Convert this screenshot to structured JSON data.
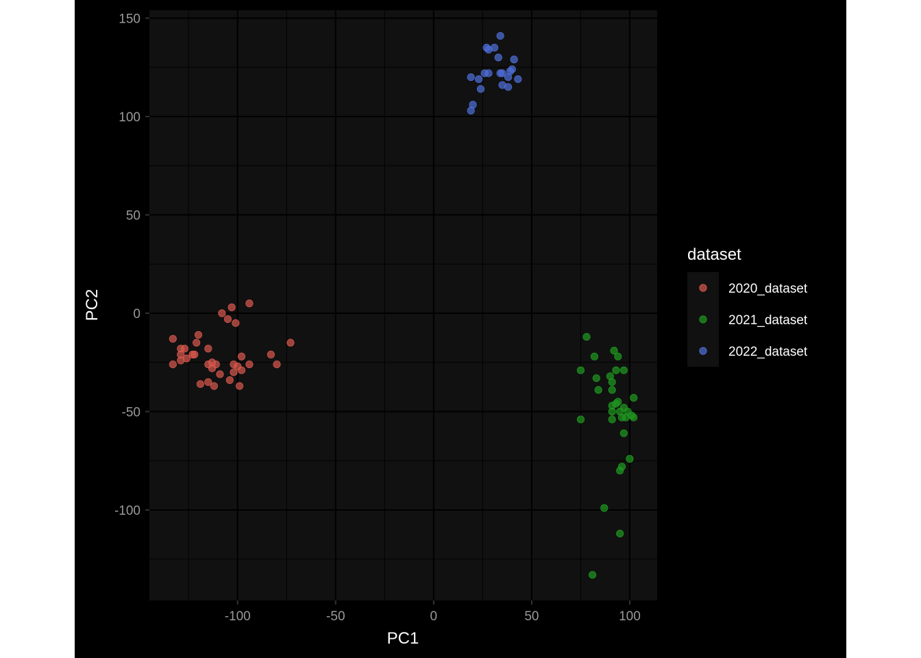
{
  "chart_data": {
    "type": "scatter",
    "title": "",
    "xlabel": "PC1",
    "ylabel": "PC2",
    "xlim": [
      -145,
      114
    ],
    "ylim": [
      -146,
      154
    ],
    "xticks": [
      -100,
      -50,
      0,
      50,
      100
    ],
    "xtick_labels": [
      "-100",
      "-50",
      "0",
      "50",
      "100"
    ],
    "yticks": [
      -100,
      -50,
      0,
      50,
      100,
      150
    ],
    "ytick_labels": [
      "-100",
      "-50",
      "0",
      "50",
      "100",
      "150"
    ],
    "grid": true,
    "background": "#111111",
    "legend": {
      "title": "dataset",
      "placement": "right"
    },
    "series": [
      {
        "name": "2020_dataset",
        "color": "#d9594e",
        "points": [
          [
            -94,
            5
          ],
          [
            -103,
            3
          ],
          [
            -108,
            0
          ],
          [
            -105,
            -3
          ],
          [
            -101,
            -5
          ],
          [
            -133,
            -13
          ],
          [
            -120,
            -11
          ],
          [
            -121,
            -15
          ],
          [
            -129,
            -18
          ],
          [
            -127,
            -18
          ],
          [
            -115,
            -18
          ],
          [
            -123,
            -21
          ],
          [
            -122,
            -21
          ],
          [
            -129,
            -21
          ],
          [
            -126,
            -23
          ],
          [
            -129,
            -24
          ],
          [
            -113,
            -25
          ],
          [
            -111,
            -26
          ],
          [
            -115,
            -26
          ],
          [
            -102,
            -26
          ],
          [
            -94,
            -26
          ],
          [
            -100,
            -27
          ],
          [
            -80,
            -26
          ],
          [
            -133,
            -26
          ],
          [
            -98,
            -22
          ],
          [
            -83,
            -21
          ],
          [
            -73,
            -15
          ],
          [
            -113,
            -28
          ],
          [
            -98,
            -29
          ],
          [
            -102,
            -30
          ],
          [
            -109,
            -31
          ],
          [
            -115,
            -35
          ],
          [
            -104,
            -34
          ],
          [
            -119,
            -36
          ],
          [
            -112,
            -37
          ],
          [
            -99,
            -37
          ]
        ]
      },
      {
        "name": "2021_dataset",
        "color": "#1f9a1f",
        "points": [
          [
            78,
            -12
          ],
          [
            82,
            -22
          ],
          [
            92,
            -19
          ],
          [
            94,
            -22
          ],
          [
            75,
            -29
          ],
          [
            93,
            -29
          ],
          [
            97,
            -29
          ],
          [
            83,
            -33
          ],
          [
            90,
            -32
          ],
          [
            91,
            -35
          ],
          [
            91,
            -39
          ],
          [
            84,
            -39
          ],
          [
            102,
            -43
          ],
          [
            94,
            -45
          ],
          [
            91,
            -47
          ],
          [
            93,
            -46
          ],
          [
            97,
            -48
          ],
          [
            99,
            -50
          ],
          [
            91,
            -50
          ],
          [
            95,
            -50
          ],
          [
            101,
            -52
          ],
          [
            102,
            -53
          ],
          [
            96,
            -53
          ],
          [
            98,
            -53
          ],
          [
            91,
            -54
          ],
          [
            75,
            -54
          ],
          [
            97,
            -61
          ],
          [
            100,
            -74
          ],
          [
            96,
            -78
          ],
          [
            95,
            -80
          ],
          [
            87,
            -99
          ],
          [
            95,
            -112
          ],
          [
            81,
            -133
          ]
        ]
      },
      {
        "name": "2022_dataset",
        "color": "#4f6fd9",
        "points": [
          [
            34,
            141
          ],
          [
            27,
            135
          ],
          [
            31,
            135
          ],
          [
            28,
            134
          ],
          [
            33,
            130
          ],
          [
            41,
            129
          ],
          [
            40,
            124
          ],
          [
            39,
            123
          ],
          [
            26,
            122
          ],
          [
            28,
            122
          ],
          [
            34,
            122
          ],
          [
            35,
            122
          ],
          [
            38,
            120
          ],
          [
            19,
            120
          ],
          [
            23,
            119
          ],
          [
            43,
            119
          ],
          [
            35,
            116
          ],
          [
            38,
            115
          ],
          [
            24,
            114
          ],
          [
            20,
            106
          ],
          [
            19,
            103
          ]
        ]
      }
    ]
  }
}
